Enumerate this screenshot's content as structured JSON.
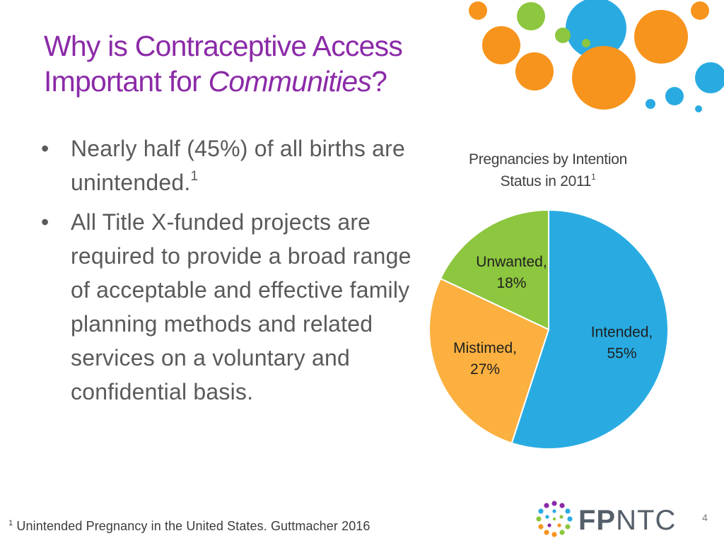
{
  "slide": {
    "title_line1": "Why is Contraceptive Access",
    "title_line2_prefix": "Important for ",
    "title_line2_emphasis": "Communities",
    "title_line2_suffix": "?",
    "bullets": [
      {
        "text": "Nearly half (45%) of all births are unintended.",
        "sup": "1"
      },
      {
        "text": "All Title X-funded projects are required to provide a broad range of acceptable and effective family planning methods and related services on a voluntary and confidential basis.",
        "sup": ""
      }
    ],
    "bullet_glyph": "•",
    "footnote_sup": "1",
    "footnote_text": "Unintended Pregnancy in the United States. Guttmacher 2016",
    "logo": {
      "fp": "FP",
      "ntc": "NTC"
    },
    "page_number": "4",
    "decor_colors": {
      "orange": "#f7941d",
      "green": "#8dc63f",
      "blue": "#29abe2"
    }
  },
  "chart_data": {
    "type": "pie",
    "title_line1": "Pregnancies by Intention",
    "title_line2": "Status in 2011",
    "title_sup": "1",
    "slices": [
      {
        "name": "Intended",
        "value": 55,
        "label_line1": "Intended,",
        "label_line2": "55%",
        "color": "#29abe2"
      },
      {
        "name": "Mistimed",
        "value": 27,
        "label_line1": "Mistimed,",
        "label_line2": "27%",
        "color": "#fbb040"
      },
      {
        "name": "Unwanted",
        "value": 18,
        "label_line1": "Unwanted,",
        "label_line2": "18%",
        "color": "#8dc63f"
      }
    ],
    "start": "12 o'clock, clockwise",
    "legend": "none (labels on slices)"
  }
}
